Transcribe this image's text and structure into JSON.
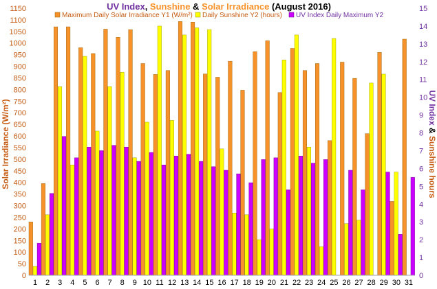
{
  "chart_data": {
    "type": "bar",
    "title": {
      "part1": "UV Index",
      "sep1": ", ",
      "part2": "Sunshine",
      "sep2": " & ",
      "part3": "Solar Irradiance",
      "part4": "  (August 2016)"
    },
    "ylabel_left": "Solar Irradiance (W/m²)",
    "ylabel_right": {
      "part1": "UV Index",
      "sep": " & ",
      "part2": "Sunshine hours"
    },
    "y1lim": [
      0,
      1150
    ],
    "y2lim": [
      0,
      15
    ],
    "y1_ticks": [
      "0",
      "50",
      "100",
      "150",
      "200",
      "250",
      "300",
      "350",
      "400",
      "450",
      "500",
      "550",
      "600",
      "650",
      "700",
      "750",
      "800",
      "850",
      "900",
      "950",
      "1000",
      "1050",
      "1100",
      "1150"
    ],
    "y2_ticks": [
      "0",
      "1",
      "2",
      "3",
      "4",
      "5",
      "6",
      "7",
      "8",
      "9",
      "10",
      "11",
      "12",
      "13",
      "14",
      "15"
    ],
    "categories": [
      "1",
      "2",
      "3",
      "4",
      "5",
      "6",
      "7",
      "8",
      "9",
      "10",
      "11",
      "12",
      "13",
      "14",
      "15",
      "16",
      "17",
      "18",
      "19",
      "20",
      "21",
      "22",
      "23",
      "24",
      "25",
      "26",
      "27",
      "28",
      "29",
      "30",
      "31"
    ],
    "legend_position": "top",
    "grid": false,
    "series": [
      {
        "name": "Maximum Daily Solar Irradiance Y1 (W/m²)",
        "axis": "y1",
        "color": "#F7922B",
        "values": [
          230,
          395,
          1070,
          1070,
          980,
          955,
          1060,
          1025,
          1058,
          912,
          865,
          882,
          1093,
          1090,
          867,
          853,
          922,
          797,
          963,
          1010,
          787,
          977,
          882,
          912,
          580,
          918,
          848,
          610,
          960,
          318,
          1017
        ]
      },
      {
        "name": "Daily Sunshine Y2 (hours)",
        "axis": "y2",
        "color": "#FFFF00",
        "values": [
          0.5,
          3.4,
          10.6,
          6.2,
          12.3,
          8.1,
          10.6,
          11.4,
          6.6,
          8.6,
          14.0,
          8.7,
          13.5,
          13.9,
          13.8,
          7.1,
          3.5,
          3.4,
          2.0,
          2.6,
          12.1,
          13.5,
          7.2,
          1.6,
          13.3,
          2.9,
          3.1,
          10.8,
          11.3,
          5.8,
          0
        ]
      },
      {
        "name": "UV Index Daily Maximum Y2",
        "axis": "y2",
        "color": "#CC00FF",
        "values": [
          1.8,
          4.6,
          7.8,
          6.6,
          7.2,
          7.0,
          7.3,
          7.2,
          6.4,
          6.9,
          6.2,
          6.7,
          6.8,
          6.4,
          6.1,
          5.9,
          5.7,
          5.2,
          6.5,
          6.6,
          4.8,
          6.7,
          6.3,
          6.5,
          0,
          5.9,
          4.8,
          0,
          5.8,
          2.3,
          5.5
        ]
      }
    ]
  },
  "colors": {
    "title_uv": "#7030A0",
    "title_sunshine": "#F7922B",
    "title_solar": "#F7922B",
    "title_dark": "#000000",
    "left_axis_text": "#C55A11",
    "right_axis_uv": "#7030A0",
    "right_axis_sun": "#C55A11",
    "bar_outline": "#8a5a00"
  }
}
